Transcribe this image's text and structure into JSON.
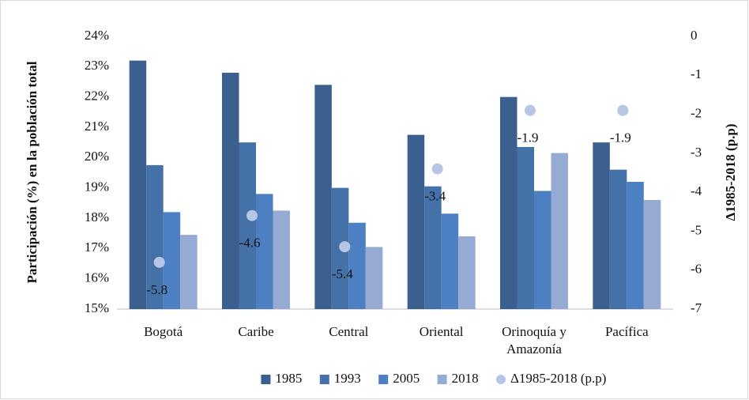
{
  "chart_data": {
    "type": "bar",
    "y_axis_label": "Participación (%) en la población total",
    "y2_axis_label": "Δ1985-2018 (p.p)",
    "categories": [
      "Bogotá",
      "Caribe",
      "Central",
      "Oriental",
      "Orinoquía y Amazonía",
      "Pacífica"
    ],
    "series": [
      {
        "name": "1985",
        "color": "#3b5f8e",
        "values": [
          23.2,
          22.8,
          22.4,
          20.75,
          22.0,
          20.5
        ]
      },
      {
        "name": "1993",
        "color": "#4571a9",
        "values": [
          19.75,
          20.5,
          19.0,
          19.05,
          20.35,
          19.6
        ]
      },
      {
        "name": "2005",
        "color": "#4c80c2",
        "values": [
          18.2,
          18.8,
          17.85,
          18.15,
          18.9,
          19.2
        ]
      },
      {
        "name": "2018",
        "color": "#95abd3",
        "values": [
          17.45,
          18.25,
          17.05,
          17.4,
          20.15,
          18.6
        ]
      },
      {
        "name": "Δ1985-2018 (p.p)",
        "color": "#b6c6e4",
        "type": "scatter",
        "axis": "y2",
        "values": [
          -5.8,
          -4.6,
          -5.4,
          -3.4,
          -1.9,
          -1.9
        ]
      }
    ],
    "ylim": [
      15,
      24
    ],
    "yticks": [
      {
        "value": 15,
        "label": "15%"
      },
      {
        "value": 16,
        "label": "16%"
      },
      {
        "value": 17,
        "label": "17%"
      },
      {
        "value": 18,
        "label": "18%"
      },
      {
        "value": 19,
        "label": "19%"
      },
      {
        "value": 20,
        "label": "20%"
      },
      {
        "value": 21,
        "label": "21%"
      },
      {
        "value": 22,
        "label": "22%"
      },
      {
        "value": 23,
        "label": "23%"
      },
      {
        "value": 24,
        "label": "24%"
      }
    ],
    "y2lim": [
      -7,
      0
    ],
    "y2ticks": [
      -7,
      -6,
      -5,
      -4,
      -3,
      -2,
      -1,
      0
    ],
    "grid": false,
    "legend": "bottom"
  }
}
